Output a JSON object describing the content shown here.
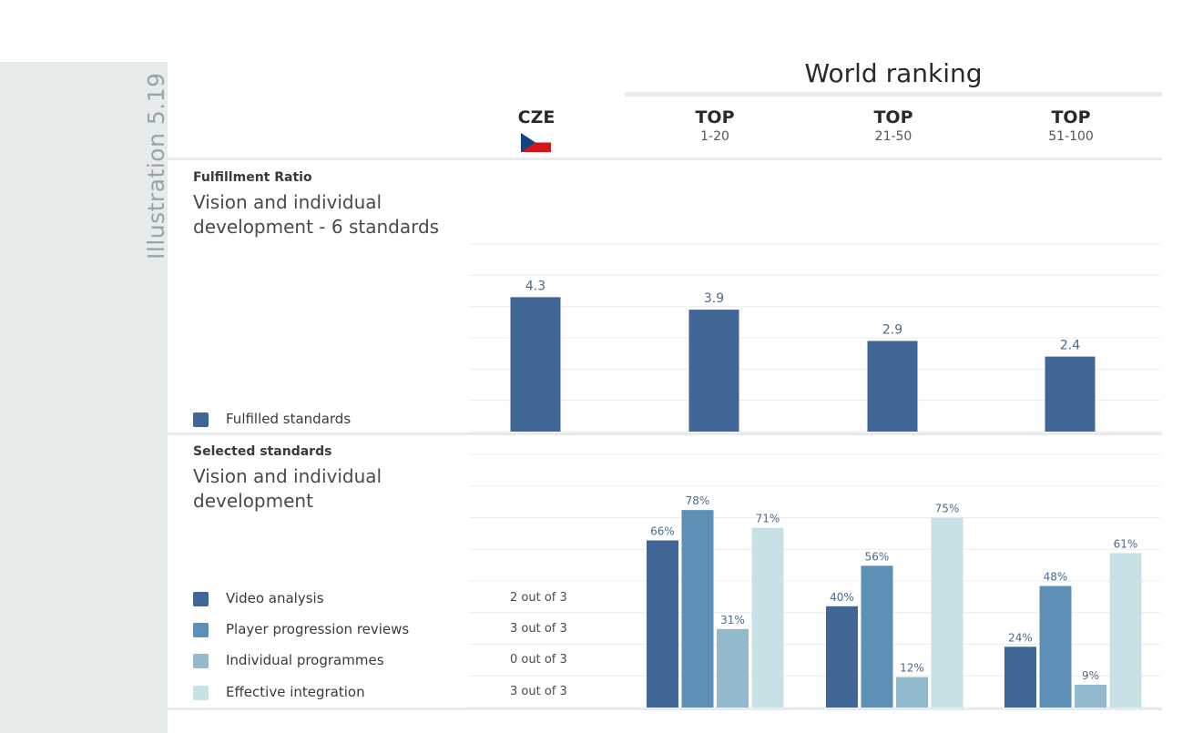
{
  "sidebar_label": "Illustration 5.19",
  "world_ranking_title": "World ranking",
  "columns": [
    {
      "title": "CZE",
      "subtitle": ""
    },
    {
      "title": "TOP",
      "subtitle": "1-20"
    },
    {
      "title": "TOP",
      "subtitle": "21-50"
    },
    {
      "title": "TOP",
      "subtitle": "51-100"
    }
  ],
  "section1": {
    "label": "Fulfillment Ratio",
    "title": "Vision and individual development - 6 standards",
    "legend": "Fulfilled standards"
  },
  "section2": {
    "label": "Selected standards",
    "title": "Vision and individual development",
    "legend": [
      {
        "name": "Video analysis",
        "cze": "2 out of 3"
      },
      {
        "name": "Player progression reviews",
        "cze": "3 out of 3"
      },
      {
        "name": "Individual programmes",
        "cze": "0 out of 3"
      },
      {
        "name": "Effective integration",
        "cze": "3 out of 3"
      }
    ]
  },
  "colors": [
    "#3f6694",
    "#5e90b6",
    "#93bacc",
    "#c8e1e6"
  ],
  "chart_data": [
    {
      "type": "bar",
      "categories": [
        "CZE",
        "TOP 1-20",
        "TOP 21-50",
        "TOP 51-100"
      ],
      "values": [
        4.3,
        3.9,
        2.9,
        2.4
      ],
      "labels": [
        "4.3",
        "3.9",
        "2.9",
        "2.4"
      ],
      "title": "Fulfillment Ratio",
      "ylim": [
        0,
        6
      ],
      "grid": true,
      "legend": "left"
    },
    {
      "type": "bar",
      "categories": [
        "TOP 1-20",
        "TOP 21-50",
        "TOP 51-100"
      ],
      "series": [
        {
          "name": "Video analysis",
          "values": [
            66,
            40,
            24
          ],
          "labels": [
            "66%",
            "40%",
            "24%"
          ]
        },
        {
          "name": "Player progression reviews",
          "values": [
            78,
            56,
            48
          ],
          "labels": [
            "78%",
            "56%",
            "48%"
          ]
        },
        {
          "name": "Individual programmes",
          "values": [
            31,
            12,
            9
          ],
          "labels": [
            "31%",
            "12%",
            "9%"
          ]
        },
        {
          "name": "Effective integration",
          "values": [
            71,
            75,
            61
          ],
          "labels": [
            "71%",
            "75%",
            "61%"
          ]
        }
      ],
      "title": "Selected standards",
      "ylim": [
        0,
        100
      ],
      "grid": true,
      "legend": "left"
    }
  ]
}
